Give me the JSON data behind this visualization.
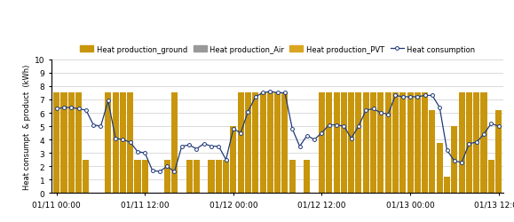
{
  "title": "",
  "ylabel": "Heat consumpt  & product  (kWh)",
  "ylim": [
    0,
    10
  ],
  "yticks": [
    0,
    1,
    2,
    3,
    4,
    5,
    6,
    7,
    8,
    9,
    10
  ],
  "bar_color_ground": "#C8960C",
  "bar_color_air": "#999999",
  "bar_color_pvt": "#DAA520",
  "line_color": "#1F3A7A",
  "legend_labels": [
    "Heat production_ground",
    "Heat production_Air",
    "Heat production_PVT",
    "Heat consumption"
  ],
  "bar_width": 0.85,
  "heat_production_ground": [
    7.5,
    7.5,
    7.5,
    7.5,
    2.5,
    0,
    0,
    7.5,
    7.5,
    7.5,
    7.5,
    2.5,
    2.5,
    0,
    0,
    2.5,
    7.5,
    0,
    2.5,
    2.5,
    0,
    2.5,
    2.5,
    2.5,
    5.0,
    7.5,
    7.5,
    7.5,
    7.5,
    7.5,
    7.5,
    7.5,
    2.5,
    0,
    2.5,
    0,
    7.5,
    7.5,
    7.5,
    7.5,
    7.5,
    7.5,
    7.5,
    7.5,
    7.5,
    7.5,
    7.5,
    7.5,
    7.5,
    7.5,
    7.5,
    6.2,
    3.75,
    1.25,
    5.0,
    7.5,
    7.5,
    7.5,
    7.5,
    2.5,
    6.2
  ],
  "heat_production_air": [
    0,
    0,
    0,
    0,
    0,
    0,
    0,
    0,
    0,
    0,
    0,
    0,
    0,
    0,
    0,
    0,
    0,
    0,
    0,
    0,
    0,
    0,
    0,
    0,
    0,
    0,
    0,
    0,
    0,
    0,
    0,
    0,
    0,
    0,
    0,
    0,
    0,
    0,
    0,
    0,
    0,
    0,
    0,
    0,
    0,
    0,
    0,
    0,
    0,
    0,
    0,
    0,
    0,
    0,
    0,
    0,
    0,
    0,
    0,
    0,
    0
  ],
  "heat_consumption": [
    6.3,
    6.4,
    6.4,
    6.3,
    6.2,
    5.1,
    5.0,
    6.9,
    4.1,
    4.0,
    3.8,
    3.1,
    3.0,
    1.7,
    1.6,
    2.0,
    1.6,
    3.5,
    3.6,
    3.3,
    3.7,
    3.5,
    3.5,
    2.5,
    4.8,
    4.5,
    6.1,
    7.2,
    7.5,
    7.6,
    7.5,
    7.5,
    4.8,
    3.5,
    4.3,
    4.0,
    4.5,
    5.1,
    5.1,
    5.0,
    4.1,
    5.0,
    6.2,
    6.3,
    6.0,
    5.9,
    7.3,
    7.2,
    7.2,
    7.2,
    7.3,
    7.3,
    6.4,
    3.2,
    2.4,
    2.3,
    3.7,
    3.8,
    4.4,
    5.2,
    5.0
  ],
  "n_hours": 61,
  "xtick_positions": [
    0,
    12,
    24,
    36,
    48,
    60
  ],
  "xtick_labels": [
    "01/11 00:00",
    "01/11 12:00",
    "01/12 00:00",
    "01/12 12:00",
    "01/13 00:00",
    "01/13 12:00"
  ],
  "figsize": [
    5.79,
    2.51
  ],
  "dpi": 100
}
